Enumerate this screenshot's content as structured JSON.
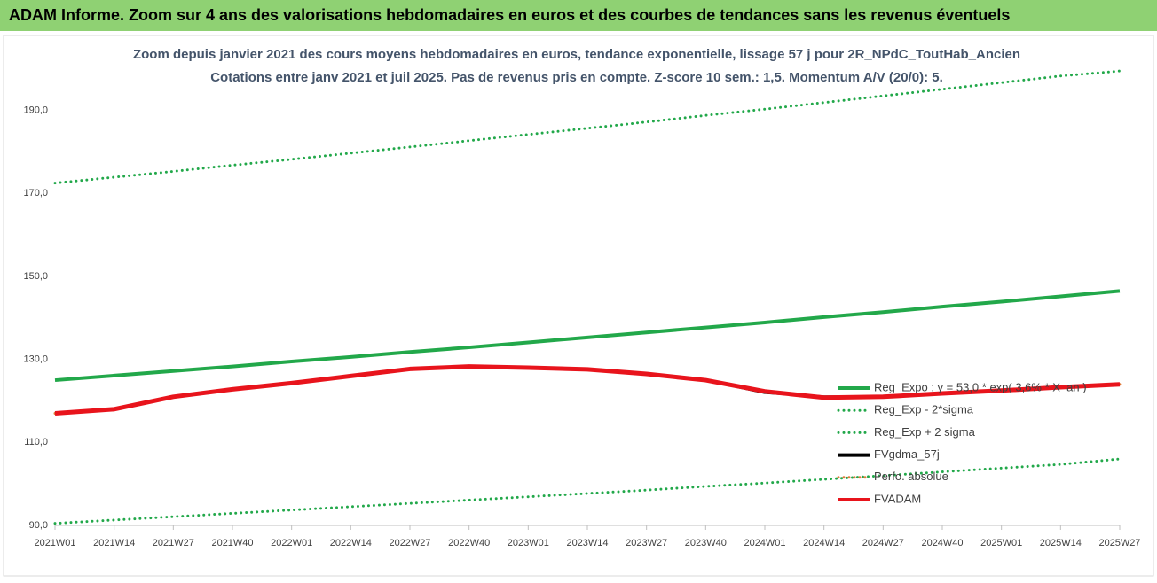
{
  "chart_data": {
    "type": "line",
    "title": "ADAM Informe. Zoom sur 4 ans des valorisations hebdomadaires en euros et des courbes de tendances sans les revenus éventuels",
    "subtitle": [
      "Zoom depuis janvier 2021 des cours moyens hebdomadaires en euros, tendance exponentielle, lissage 57 j pour 2R_NPdC_ToutHab_Ancien",
      "Cotations entre janv 2021 et juil 2025. Pas de revenus pris en compte. Z-score 10 sem.: 1,5. Momentum A/V (20/0): 5."
    ],
    "categories": [
      "2021W01",
      "2021W14",
      "2021W27",
      "2021W40",
      "2022W01",
      "2022W14",
      "2022W27",
      "2022W40",
      "2023W01",
      "2023W14",
      "2023W27",
      "2023W40",
      "2024W01",
      "2024W14",
      "2024W27",
      "2024W40",
      "2025W01",
      "2025W14",
      "2025W27"
    ],
    "ylim": [
      90,
      207
    ],
    "yticks": [
      {
        "value": 90,
        "label": "90,0"
      },
      {
        "value": 110,
        "label": "110,0"
      },
      {
        "value": 130,
        "label": "130,0"
      },
      {
        "value": 150,
        "label": "150,0"
      },
      {
        "value": 170,
        "label": "170,0"
      },
      {
        "value": 190,
        "label": "190,0"
      }
    ],
    "grid": false,
    "legend": "right",
    "series": [
      {
        "name": "Reg_Expo : y = 53,0 * exp( 3,6% * X_an )",
        "color": "#22a84a",
        "line_style": "solid",
        "values": [
          125.0,
          126.1,
          127.2,
          128.3,
          129.5,
          130.6,
          131.8,
          132.9,
          134.1,
          135.3,
          136.5,
          137.7,
          138.9,
          140.2,
          141.4,
          142.7,
          143.9,
          145.2,
          146.5
        ]
      },
      {
        "name": "Reg_Exp - 2*sigma",
        "color": "#22a84a",
        "line_style": "dotted",
        "values": [
          90.5,
          91.3,
          92.1,
          92.9,
          93.7,
          94.5,
          95.3,
          96.1,
          96.9,
          97.7,
          98.5,
          99.4,
          100.2,
          101.1,
          102.0,
          102.9,
          103.8,
          104.7,
          106.0
        ]
      },
      {
        "name": "Reg_Exp + 2 sigma",
        "color": "#22a84a",
        "line_style": "dotted",
        "values": [
          172.5,
          173.9,
          175.3,
          176.8,
          178.2,
          179.7,
          181.2,
          182.7,
          184.2,
          185.7,
          187.2,
          188.8,
          190.3,
          191.9,
          193.5,
          195.1,
          196.7,
          198.3,
          199.5
        ]
      },
      {
        "name": "FVgdma_57j",
        "color": "#000000",
        "line_style": "solid",
        "values": [
          117.0,
          118.0,
          121.0,
          122.8,
          124.3,
          126.0,
          127.7,
          128.4,
          128.0,
          127.6,
          126.5,
          125.0,
          122.0,
          121.0,
          121.0,
          121.8,
          122.5,
          123.3,
          124.0
        ]
      },
      {
        "name": "Perfo. absolue",
        "color": "#e07b39",
        "line_style": "dotted",
        "values": [
          117.0,
          118.0,
          121.0,
          122.8,
          124.3,
          126.0,
          127.7,
          128.3,
          128.0,
          127.6,
          126.5,
          125.0,
          122.3,
          120.8,
          121.0,
          121.8,
          122.5,
          123.3,
          124.0
        ]
      },
      {
        "name": "FVADAM",
        "color": "#e8141c",
        "line_style": "solid",
        "values": [
          117.0,
          118.0,
          121.0,
          122.8,
          124.3,
          126.0,
          127.7,
          128.3,
          128.0,
          127.6,
          126.5,
          125.0,
          122.3,
          120.8,
          121.0,
          121.8,
          122.5,
          123.3,
          124.0
        ]
      }
    ]
  }
}
